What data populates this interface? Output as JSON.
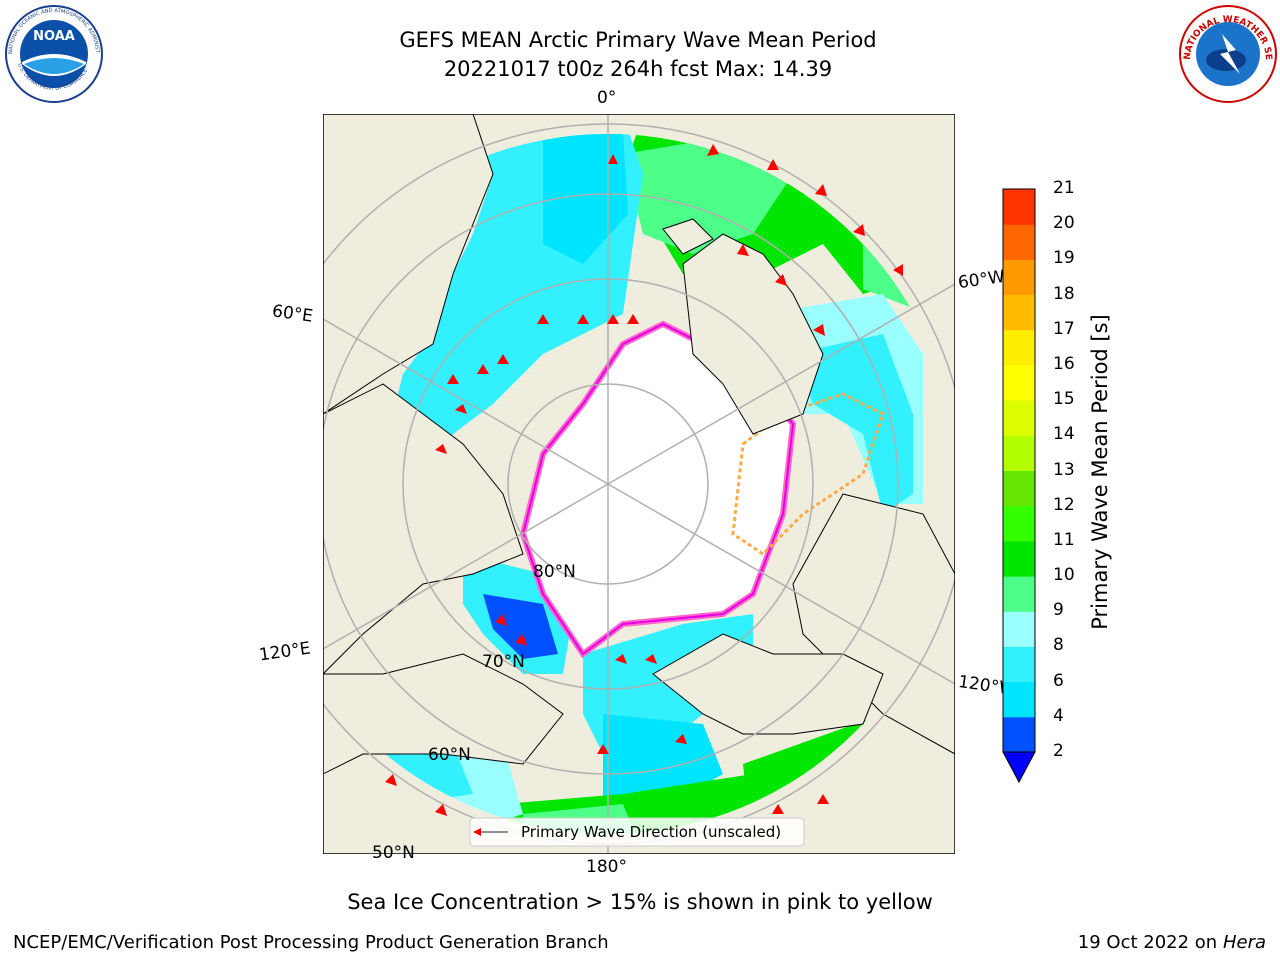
{
  "header": {
    "title_line1": "GEFS MEAN Arctic Primary Wave Mean Period",
    "title_line2": "20221017 t00z 264h fcst   Max: 14.39"
  },
  "logos": {
    "left": "NOAA",
    "left_ring_top": "NATIONAL OCEANIC AND ATMOSPHERIC ADMINISTRATION",
    "left_ring_bottom": "U.S. DEPARTMENT OF COMMERCE",
    "right_ring": "NATIONAL WEATHER SERVICE"
  },
  "map": {
    "meridian_labels": {
      "top": "0°",
      "left_upper": "60°E",
      "right_upper": "60°W",
      "left_lower": "120°E",
      "right_lower": "120°W",
      "bottom": "180°"
    },
    "parallel_labels": {
      "p80": "80°N",
      "p70": "70°N",
      "p60": "60°N",
      "p50": "50°N"
    },
    "legend_label": "Primary Wave Direction (unscaled)",
    "colors": {
      "land": "#efedde",
      "ice_free_unknown": "#ffffff",
      "ice_edge_pink": "#ff66cc",
      "ice_edge_magenta": "#e600e6",
      "ice_edge_orange": "#ffaa44",
      "arrow": "#ff0000"
    }
  },
  "colorbar": {
    "label": "Primary Wave Mean Period [s]",
    "ticks": [
      "2",
      "4",
      "6",
      "8",
      "9",
      "10",
      "11",
      "12",
      "13",
      "14",
      "15",
      "16",
      "17",
      "18",
      "19",
      "20",
      "21"
    ],
    "colors": [
      "#0050ff",
      "#00e5ff",
      "#33f0ff",
      "#99ffff",
      "#4dff88",
      "#00e600",
      "#33ff00",
      "#66e600",
      "#b3ff00",
      "#ddff00",
      "#ffff00",
      "#ffee00",
      "#ffbb00",
      "#ff9900",
      "#ff6600",
      "#ff3300"
    ],
    "extend_color": "#0000ff"
  },
  "caption": "Sea Ice Concentration > 15% is shown in pink to yellow",
  "footer": {
    "left": "NCEP/EMC/Verification Post Processing Product Generation Branch",
    "right_date": "19 Oct 2022 on ",
    "right_host": "Hera"
  }
}
